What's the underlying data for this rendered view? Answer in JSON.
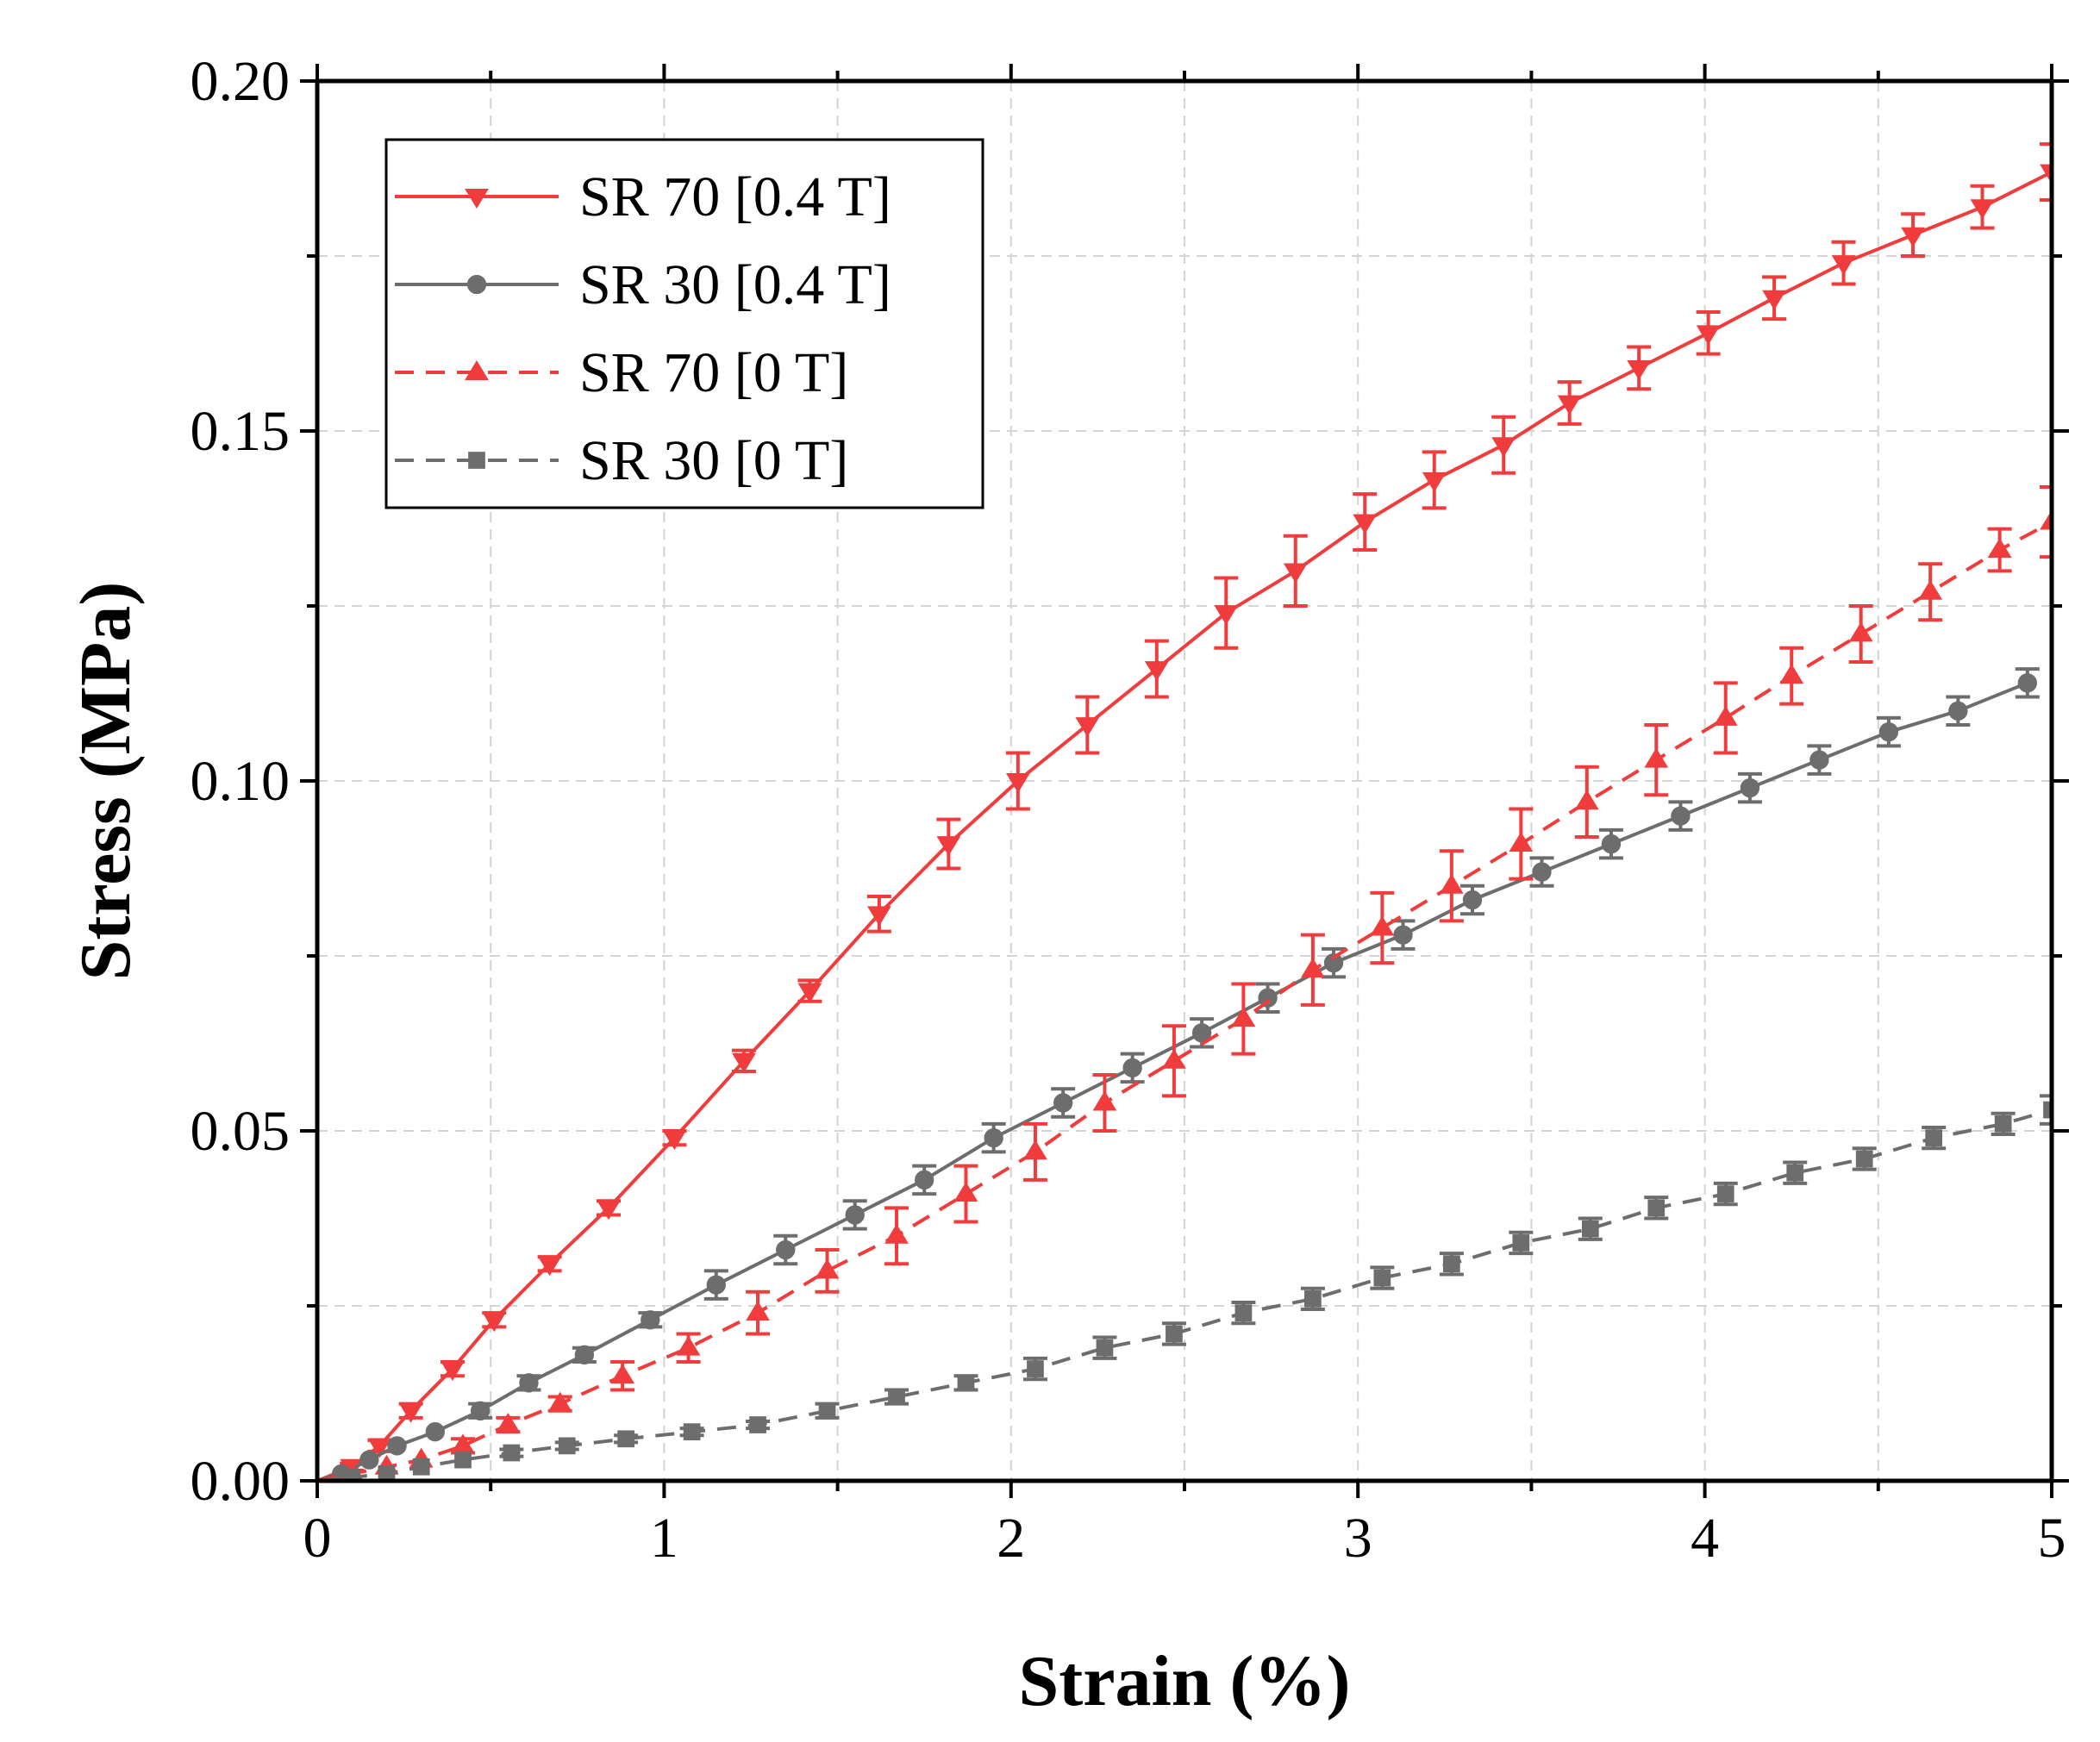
{
  "chart_data": {
    "type": "line",
    "xlabel": "Strain (%)",
    "ylabel": "Stress (MPa)",
    "xlim": [
      0,
      5
    ],
    "ylim": [
      0,
      0.2
    ],
    "xticks": [
      "0",
      "1",
      "2",
      "3",
      "4",
      "5"
    ],
    "yticks": [
      "0.00",
      "0.05",
      "0.10",
      "0.15",
      "0.20"
    ],
    "grid": true,
    "legend_position": "top-left",
    "series": [
      {
        "name": "SR 70 [0.4 T]",
        "color": "#f03c3c",
        "line": "solid",
        "marker": "triangle-down",
        "x": [
          0,
          0.1,
          0.18,
          0.27,
          0.39,
          0.51,
          0.67,
          0.84,
          1.03,
          1.23,
          1.42,
          1.62,
          1.82,
          2.02,
          2.22,
          2.42,
          2.62,
          2.82,
          3.02,
          3.22,
          3.42,
          3.61,
          3.81,
          4.01,
          4.2,
          4.4,
          4.6,
          4.8,
          5.0
        ],
        "y": [
          0,
          0.002,
          0.005,
          0.01,
          0.016,
          0.023,
          0.031,
          0.039,
          0.049,
          0.06,
          0.07,
          0.081,
          0.091,
          0.1,
          0.108,
          0.116,
          0.124,
          0.13,
          0.137,
          0.143,
          0.148,
          0.154,
          0.159,
          0.164,
          0.169,
          0.174,
          0.178,
          0.182,
          0.187
        ],
        "err": [
          0,
          0.0005,
          0.0008,
          0.001,
          0.001,
          0.001,
          0.001,
          0.001,
          0.001,
          0.0015,
          0.0015,
          0.0025,
          0.0035,
          0.004,
          0.004,
          0.004,
          0.005,
          0.005,
          0.004,
          0.004,
          0.004,
          0.003,
          0.003,
          0.003,
          0.003,
          0.003,
          0.003,
          0.003,
          0.004
        ]
      },
      {
        "name": "SR 30 [0.4 T]",
        "color": "#6d6d6d",
        "line": "solid",
        "marker": "circle",
        "x": [
          0,
          0.07,
          0.15,
          0.23,
          0.34,
          0.47,
          0.61,
          0.77,
          0.96,
          1.15,
          1.35,
          1.55,
          1.75,
          1.95,
          2.15,
          2.35,
          2.55,
          2.74,
          2.93,
          3.13,
          3.33,
          3.53,
          3.73,
          3.93,
          4.13,
          4.33,
          4.53,
          4.73,
          4.93
        ],
        "y": [
          0,
          0.001,
          0.003,
          0.005,
          0.007,
          0.01,
          0.014,
          0.018,
          0.023,
          0.028,
          0.033,
          0.038,
          0.043,
          0.049,
          0.054,
          0.059,
          0.064,
          0.069,
          0.074,
          0.078,
          0.083,
          0.087,
          0.091,
          0.095,
          0.099,
          0.103,
          0.107,
          0.11,
          0.114
        ],
        "err": [
          0,
          0,
          0,
          0,
          0,
          0.001,
          0.001,
          0.001,
          0.001,
          0.002,
          0.002,
          0.002,
          0.002,
          0.002,
          0.002,
          0.002,
          0.002,
          0.002,
          0.002,
          0.002,
          0.002,
          0.002,
          0.002,
          0.002,
          0.002,
          0.002,
          0.002,
          0.002,
          0.002
        ]
      },
      {
        "name": "SR 70 [0 T]",
        "color": "#f03c3c",
        "line": "dashed",
        "marker": "triangle-up",
        "x": [
          0,
          0.1,
          0.2,
          0.3,
          0.42,
          0.55,
          0.7,
          0.88,
          1.07,
          1.27,
          1.47,
          1.67,
          1.87,
          2.07,
          2.27,
          2.47,
          2.67,
          2.87,
          3.07,
          3.27,
          3.47,
          3.66,
          3.86,
          4.06,
          4.25,
          4.45,
          4.65,
          4.85,
          5.0
        ],
        "y": [
          0,
          0.001,
          0.002,
          0.003,
          0.005,
          0.008,
          0.011,
          0.015,
          0.019,
          0.024,
          0.03,
          0.035,
          0.041,
          0.047,
          0.054,
          0.06,
          0.066,
          0.073,
          0.079,
          0.085,
          0.091,
          0.097,
          0.103,
          0.109,
          0.115,
          0.121,
          0.127,
          0.133,
          0.137
        ],
        "err": [
          0,
          0,
          0,
          0,
          0.001,
          0.001,
          0.001,
          0.002,
          0.002,
          0.003,
          0.003,
          0.004,
          0.004,
          0.004,
          0.004,
          0.005,
          0.005,
          0.005,
          0.005,
          0.005,
          0.005,
          0.005,
          0.005,
          0.005,
          0.004,
          0.004,
          0.004,
          0.003,
          0.005
        ]
      },
      {
        "name": "SR 30 [0 T]",
        "color": "#6d6d6d",
        "line": "dashed",
        "marker": "square",
        "x": [
          0,
          0.1,
          0.2,
          0.3,
          0.42,
          0.56,
          0.72,
          0.89,
          1.08,
          1.27,
          1.47,
          1.67,
          1.87,
          2.07,
          2.27,
          2.47,
          2.67,
          2.87,
          3.07,
          3.27,
          3.47,
          3.67,
          3.86,
          4.06,
          4.26,
          4.46,
          4.66,
          4.86,
          5.0
        ],
        "y": [
          0,
          0.0005,
          0.001,
          0.002,
          0.003,
          0.004,
          0.005,
          0.006,
          0.007,
          0.008,
          0.01,
          0.012,
          0.014,
          0.016,
          0.019,
          0.021,
          0.024,
          0.026,
          0.029,
          0.031,
          0.034,
          0.036,
          0.039,
          0.041,
          0.044,
          0.046,
          0.049,
          0.051,
          0.053
        ],
        "err": [
          0,
          0,
          0,
          0,
          0,
          0.0005,
          0.0005,
          0.0005,
          0.0005,
          0.0005,
          0.001,
          0.001,
          0.001,
          0.0015,
          0.0015,
          0.0015,
          0.0015,
          0.0015,
          0.0015,
          0.0015,
          0.0015,
          0.0015,
          0.0015,
          0.0015,
          0.0015,
          0.0015,
          0.0015,
          0.0015,
          0.002
        ]
      }
    ]
  }
}
